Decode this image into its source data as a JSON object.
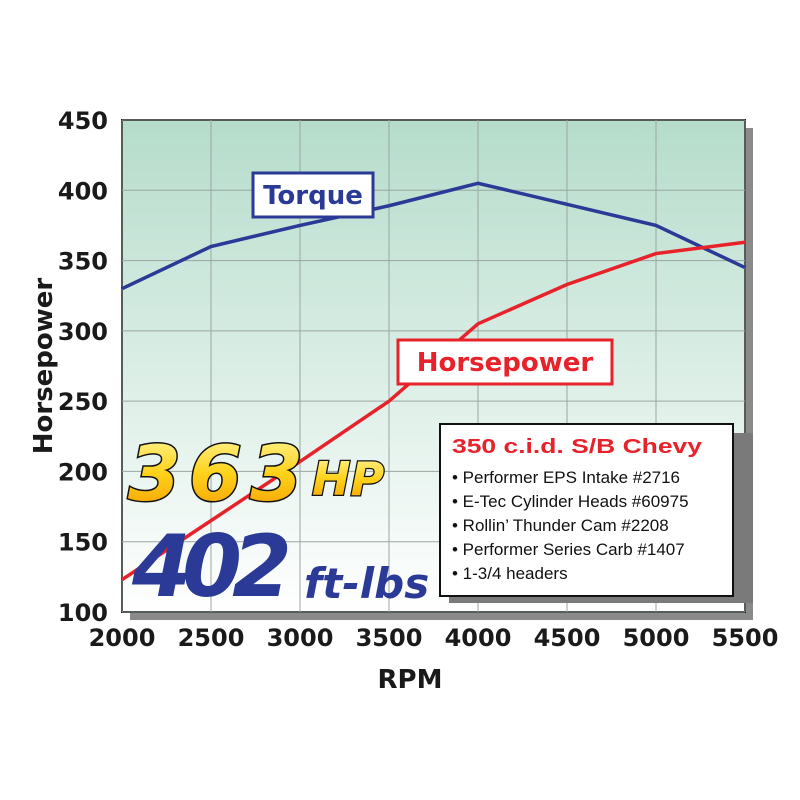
{
  "chart_data": {
    "type": "line",
    "x": [
      2000,
      2500,
      3000,
      3500,
      4000,
      4500,
      5000,
      5500
    ],
    "series": [
      {
        "name": "Torque",
        "color": "#2b3a96",
        "values": [
          330,
          360,
          375,
          389,
          405,
          390,
          375,
          345
        ]
      },
      {
        "name": "Horsepower",
        "color": "#e8222a",
        "values": [
          123,
          165,
          207,
          250,
          305,
          333,
          355,
          363
        ]
      }
    ],
    "xlim": [
      2000,
      5500
    ],
    "ylim": [
      100,
      450
    ],
    "xticks": [
      2000,
      2500,
      3000,
      3500,
      4000,
      4500,
      5000,
      5500
    ],
    "yticks": [
      100,
      150,
      200,
      250,
      300,
      350,
      400,
      450
    ],
    "xlabel": "RPM",
    "ylabel": "Horsepower",
    "grid": true,
    "callouts": [
      "363",
      "HP",
      "402",
      "ft-lbs"
    ],
    "spec_box": {
      "title": "350 c.i.d. S/B Chevy",
      "items": [
        "• Performer EPS Intake #2716",
        "• E-Tec Cylinder Heads #60975",
        "• Rollin’ Thunder Cam #2208",
        "• Performer Series Carb #1407",
        "• 1-3/4 headers"
      ]
    }
  }
}
